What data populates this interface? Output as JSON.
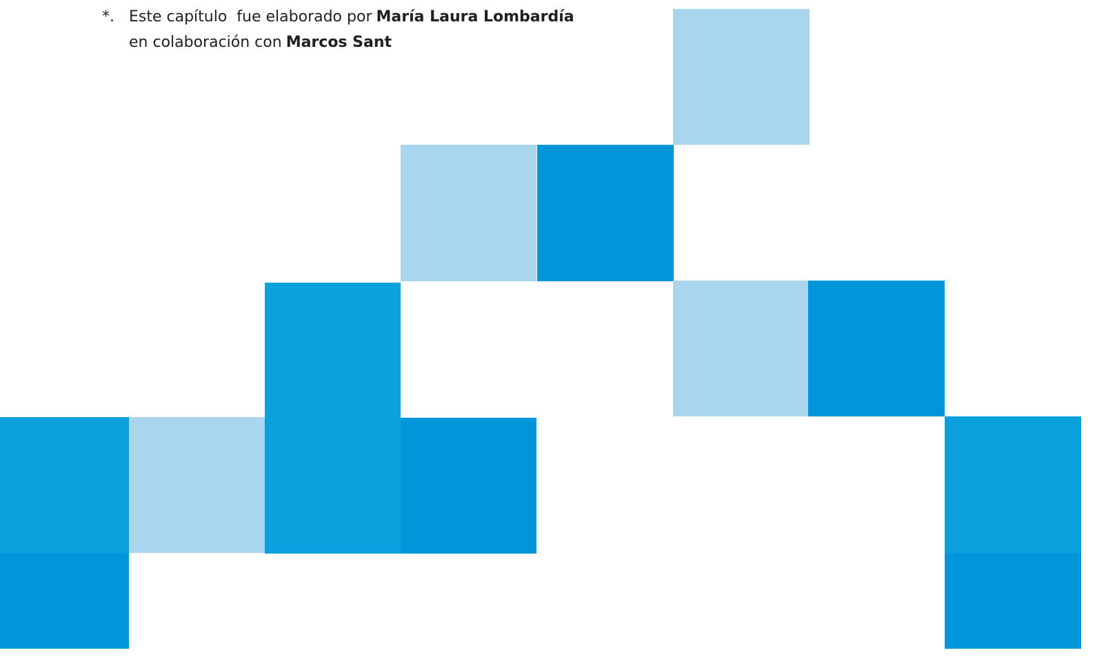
{
  "footnote": {
    "marker": "*.",
    "lines": [
      {
        "text": "Este capítulo  fue elaborado por",
        "author": "María Laura Lombardía"
      },
      {
        "text": "en colaboración con",
        "author": "Marcos Sant"
      }
    ]
  }
}
